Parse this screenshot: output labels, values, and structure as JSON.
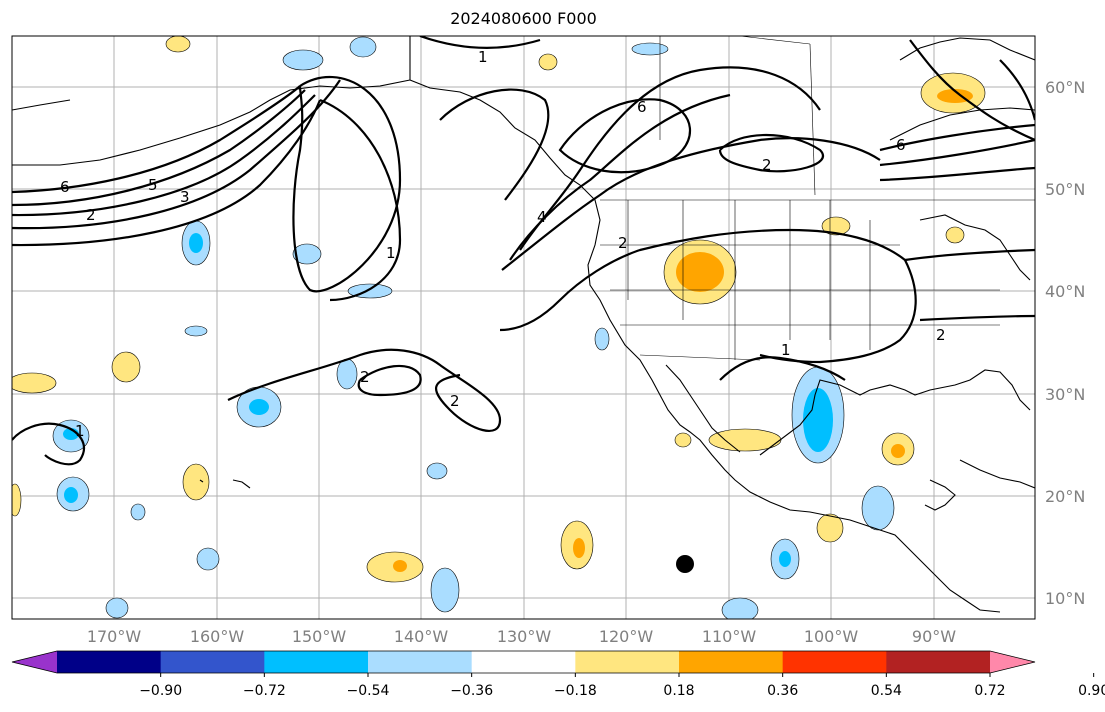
{
  "title": "2024080600 F000",
  "lat_labels": [
    "60°N",
    "50°N",
    "40°N",
    "30°N",
    "20°N",
    "10°N"
  ],
  "lon_labels": [
    "170°W",
    "160°W",
    "150°W",
    "140°W",
    "130°W",
    "120°W",
    "110°W",
    "100°W",
    "90°W"
  ],
  "colorbar": {
    "tick_labels": [
      "−0.90",
      "−0.72",
      "−0.54",
      "−0.36",
      "−0.18",
      "0.18",
      "0.36",
      "0.54",
      "0.72",
      "0.90"
    ],
    "colors": [
      "#9933cc",
      "#000088",
      "#3355cc",
      "#00bfff",
      "#aaddff",
      "#ffffff",
      "#ffe680",
      "#ffa500",
      "#ff3300",
      "#b22222",
      "#ff88aa"
    ]
  },
  "contour_labels": [
    "1",
    "2",
    "3",
    "4",
    "5",
    "6"
  ],
  "map_colors": {
    "frame": "#000000",
    "grid": "#b0b0b0",
    "contour": "#000000",
    "coast": "#000000"
  }
}
